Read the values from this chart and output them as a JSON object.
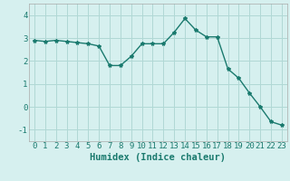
{
  "x": [
    0,
    1,
    2,
    3,
    4,
    5,
    6,
    7,
    8,
    9,
    10,
    11,
    12,
    13,
    14,
    15,
    16,
    17,
    18,
    19,
    20,
    21,
    22,
    23
  ],
  "y": [
    2.9,
    2.85,
    2.9,
    2.85,
    2.8,
    2.75,
    2.65,
    1.8,
    1.8,
    2.2,
    2.75,
    2.75,
    2.75,
    3.25,
    3.85,
    3.35,
    3.05,
    3.05,
    1.65,
    1.25,
    0.6,
    0.0,
    -0.65,
    -0.8
  ],
  "line_color": "#1a7a6e",
  "marker": "*",
  "marker_size": 3,
  "bg_color": "#d6f0ef",
  "grid_color": "#b0d8d5",
  "xlabel": "Humidex (Indice chaleur)",
  "xlim": [
    -0.5,
    23.5
  ],
  "ylim": [
    -1.5,
    4.5
  ],
  "yticks": [
    -1,
    0,
    1,
    2,
    3,
    4
  ],
  "xticks": [
    0,
    1,
    2,
    3,
    4,
    5,
    6,
    7,
    8,
    9,
    10,
    11,
    12,
    13,
    14,
    15,
    16,
    17,
    18,
    19,
    20,
    21,
    22,
    23
  ],
  "xlabel_fontsize": 7.5,
  "tick_fontsize": 6.5
}
